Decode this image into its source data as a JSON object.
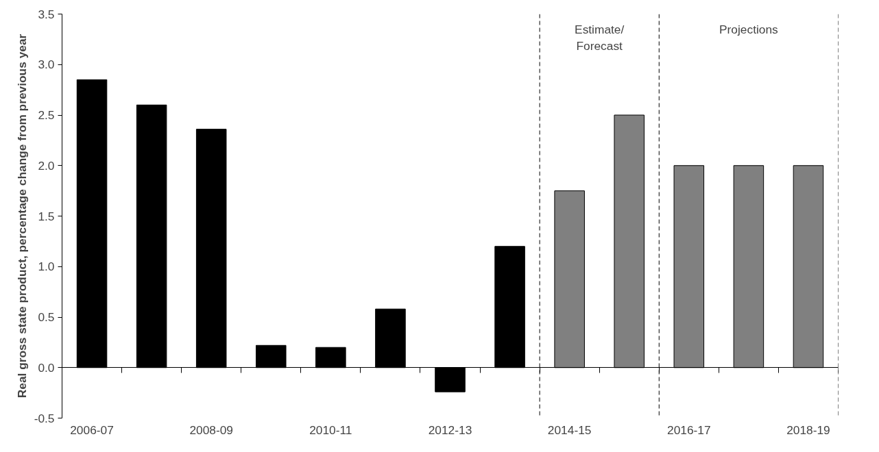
{
  "chart_data": {
    "type": "bar",
    "ylabel": "Real gross state product, percentage change from previous year",
    "categories": [
      "2006-07",
      null,
      "2008-09",
      null,
      "2010-11",
      null,
      "2012-13",
      null,
      "2014-15",
      null,
      "2016-17",
      null,
      "2018-19"
    ],
    "values": [
      2.85,
      2.6,
      2.36,
      0.22,
      0.2,
      0.58,
      -0.24,
      1.2,
      1.75,
      2.5,
      2.0,
      2.0,
      2.0
    ],
    "colors": [
      "#000000",
      "#000000",
      "#000000",
      "#000000",
      "#000000",
      "#000000",
      "#000000",
      "#000000",
      "#808080",
      "#808080",
      "#808080",
      "#808080",
      "#808080"
    ],
    "ylim": [
      -0.5,
      3.5
    ],
    "yticks": [
      {
        "value": -0.5,
        "label": "-0.5"
      },
      {
        "value": 0,
        "label": "0.0"
      },
      {
        "value": 0.5,
        "label": "0.5"
      },
      {
        "value": 1,
        "label": "1.0"
      },
      {
        "value": 1.5,
        "label": "1.5"
      },
      {
        "value": 2,
        "label": "2.0"
      },
      {
        "value": 2.5,
        "label": "2.5"
      },
      {
        "value": 3,
        "label": "3.0"
      },
      {
        "value": 3.5,
        "label": "3.5"
      }
    ],
    "annotations": [
      "Estimate/\nForecast",
      "Projections"
    ],
    "grid": false
  }
}
